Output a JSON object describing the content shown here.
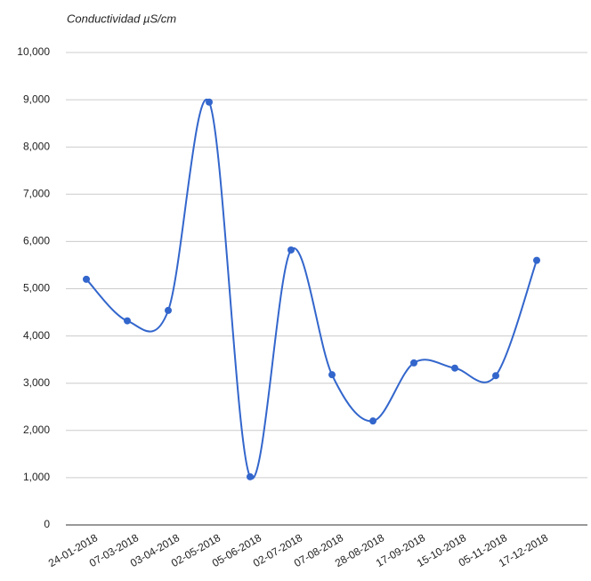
{
  "chart_data": {
    "type": "line",
    "title": "Conductividad µS/cm",
    "categories": [
      "24-01-2018",
      "07-03-2018",
      "03-04-2018",
      "02-05-2018",
      "05-06-2018",
      "02-07-2018",
      "07-08-2018",
      "28-08-2018",
      "17-09-2018",
      "15-10-2018",
      "05-11-2018",
      "17-12-2018"
    ],
    "values": [
      5200,
      4320,
      4540,
      8950,
      1020,
      5820,
      3180,
      2200,
      3430,
      3320,
      3160,
      5600
    ],
    "color": "#3366cc",
    "ylim": [
      0,
      10000
    ],
    "yticks": [
      0,
      {
        "value": 1000,
        "label": "1,000"
      },
      {
        "value": 2000,
        "label": "2,000"
      },
      {
        "value": 3000,
        "label": "3,000"
      },
      {
        "value": 4000,
        "label": "4,000"
      },
      {
        "value": 5000,
        "label": "5,000"
      },
      {
        "value": 6000,
        "label": "6,000"
      },
      {
        "value": 7000,
        "label": "7,000"
      },
      {
        "value": 8000,
        "label": "8,000"
      },
      {
        "value": 9000,
        "label": "9,000"
      },
      {
        "value": 10000,
        "label": "10,000"
      }
    ],
    "grid": true,
    "curve": "smooth"
  }
}
